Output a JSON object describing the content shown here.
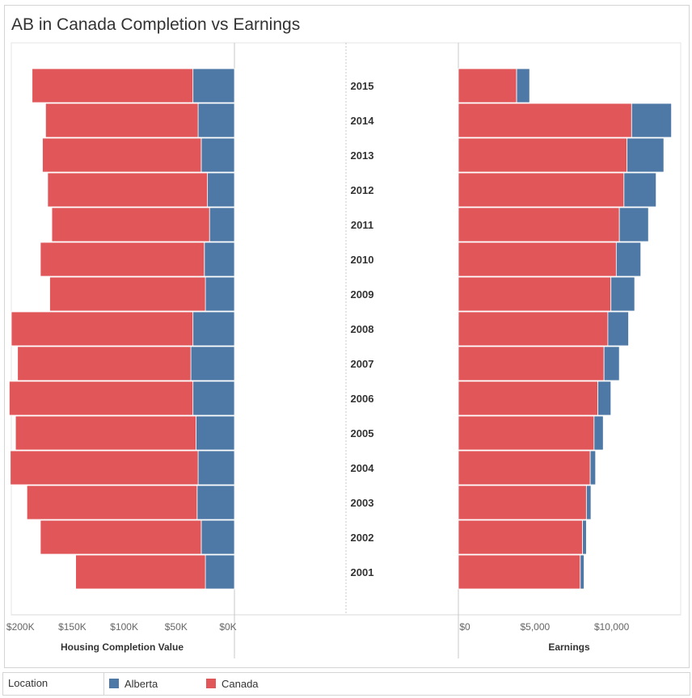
{
  "title": "AB in Canada Completion vs Earnings",
  "legend": {
    "title": "Location",
    "items": [
      {
        "label": "Alberta",
        "color": "#4e79a7"
      },
      {
        "label": "Canada",
        "color": "#e15759"
      }
    ]
  },
  "chart_data": [
    {
      "type": "bar",
      "orientation": "horizontal-stacked-reversed",
      "xlabel": "Housing Completion Value",
      "ylabel": "",
      "xlim": [
        0,
        215000
      ],
      "xticks": [
        {
          "value": 200000,
          "label": "$200K"
        },
        {
          "value": 150000,
          "label": "$150K"
        },
        {
          "value": 100000,
          "label": "$100K"
        },
        {
          "value": 50000,
          "label": "$50K"
        },
        {
          "value": 0,
          "label": "$0K"
        }
      ],
      "categories": [
        "2015",
        "2014",
        "2013",
        "2012",
        "2011",
        "2010",
        "2009",
        "2008",
        "2007",
        "2006",
        "2005",
        "2004",
        "2003",
        "2002",
        "2001"
      ],
      "series": [
        {
          "name": "Alberta",
          "values": [
            40000,
            35000,
            32000,
            26000,
            24000,
            29000,
            28000,
            40000,
            42000,
            40000,
            37000,
            35000,
            36000,
            32000,
            28000
          ]
        },
        {
          "name": "Canada",
          "values": [
            155000,
            147000,
            153000,
            154000,
            152000,
            158000,
            150000,
            175000,
            167000,
            177000,
            174000,
            181000,
            164000,
            155000,
            125000
          ]
        }
      ]
    },
    {
      "type": "bar",
      "orientation": "horizontal-stacked",
      "xlabel": "Earnings",
      "ylabel": "",
      "xlim": [
        0,
        14500
      ],
      "xticks": [
        {
          "value": 0,
          "label": "$0"
        },
        {
          "value": 5000,
          "label": "$5,000"
        },
        {
          "value": 10000,
          "label": "$10,000"
        }
      ],
      "categories": [
        "2015",
        "2014",
        "2013",
        "2012",
        "2011",
        "2010",
        "2009",
        "2008",
        "2007",
        "2006",
        "2005",
        "2004",
        "2003",
        "2002",
        "2001"
      ],
      "series": [
        {
          "name": "Canada",
          "values": [
            3800,
            11300,
            11000,
            10800,
            10500,
            10300,
            9950,
            9750,
            9500,
            9100,
            8850,
            8600,
            8350,
            8100,
            7950
          ]
        },
        {
          "name": "Alberta",
          "values": [
            850,
            2600,
            2400,
            2100,
            1900,
            1600,
            1550,
            1350,
            1000,
            850,
            600,
            350,
            300,
            250,
            250
          ]
        }
      ]
    }
  ]
}
